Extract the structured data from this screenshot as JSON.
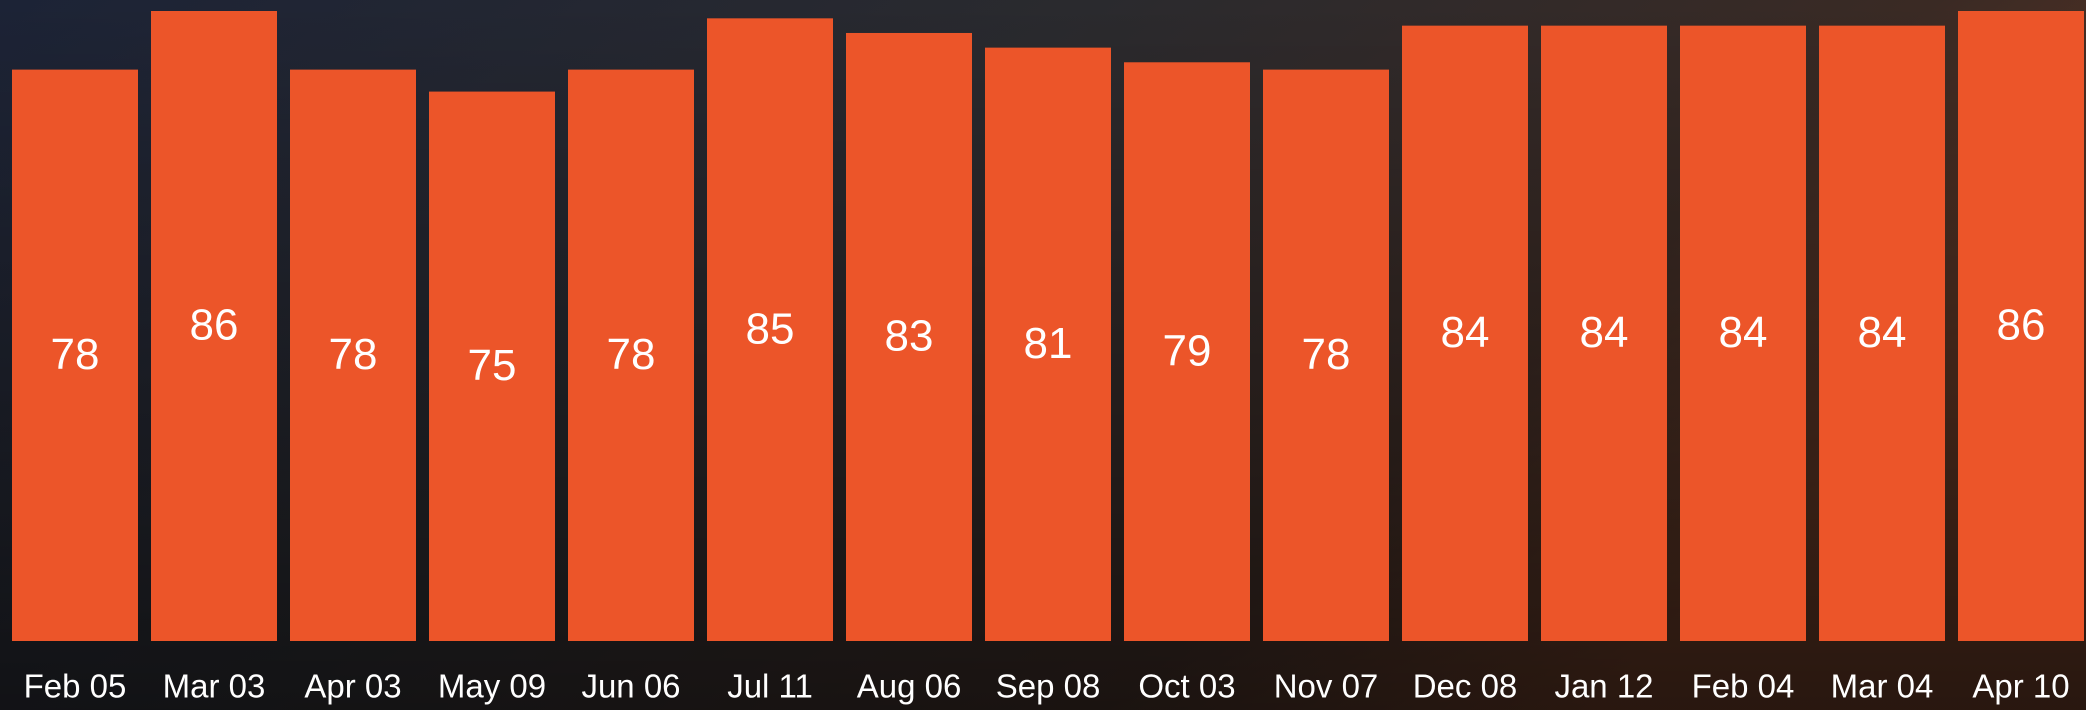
{
  "chart_data": {
    "type": "bar",
    "categories": [
      "Feb 05",
      "Mar 03",
      "Apr 03",
      "May 09",
      "Jun 06",
      "Jul 11",
      "Aug 06",
      "Sep 08",
      "Oct 03",
      "Nov 07",
      "Dec 08",
      "Jan 12",
      "Feb 04",
      "Mar 04",
      "Apr 10"
    ],
    "values": [
      78,
      86,
      78,
      75,
      78,
      85,
      83,
      81,
      79,
      78,
      84,
      84,
      84,
      84,
      86
    ],
    "color": "#ec5529"
  }
}
